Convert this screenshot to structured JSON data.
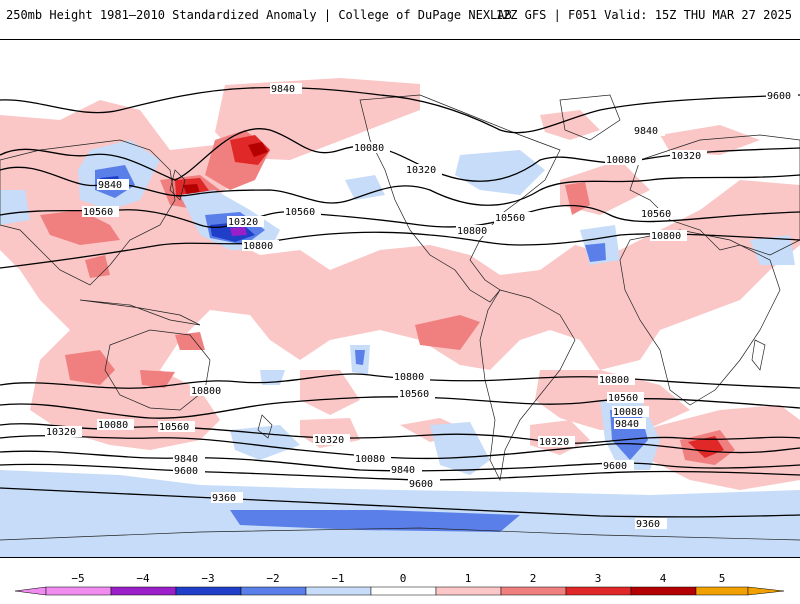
{
  "header": {
    "title": "250mb Height 1981–2010 Standardized Anomaly | College of DuPage NEXLAB",
    "run_info": "12Z GFS | F051 Valid: 15Z THU MAR 27 2025"
  },
  "colors": {
    "neg5": "#f08cf0",
    "neg4": "#9b1fc8",
    "neg3": "#1f3fc8",
    "neg2": "#5a7fe8",
    "neg1": "#c6dcf8",
    "zero": "#ffffff",
    "pos1": "#fac6c6",
    "pos2": "#f08080",
    "pos3": "#e02828",
    "pos4": "#b40000",
    "pos5": "#f0a000"
  },
  "colorbar": {
    "ticks": [
      "−5",
      "−4",
      "−3",
      "−2",
      "−1",
      "0",
      "1",
      "2",
      "3",
      "4",
      "5"
    ]
  },
  "contours": {
    "labels": [
      {
        "text": "9840"
      },
      {
        "text": "9600"
      },
      {
        "text": "9840"
      },
      {
        "text": "10080"
      },
      {
        "text": "10080"
      },
      {
        "text": "9840"
      },
      {
        "text": "10320"
      },
      {
        "text": "10320"
      },
      {
        "text": "10560"
      },
      {
        "text": "10560"
      },
      {
        "text": "10320"
      },
      {
        "text": "10560"
      },
      {
        "text": "10800"
      },
      {
        "text": "10800"
      },
      {
        "text": "10800"
      },
      {
        "text": "10560"
      },
      {
        "text": "10800"
      },
      {
        "text": "10800"
      },
      {
        "text": "10560"
      },
      {
        "text": "10560"
      },
      {
        "text": "10320"
      },
      {
        "text": "10080"
      },
      {
        "text": "10560"
      },
      {
        "text": "10320"
      },
      {
        "text": "9840"
      },
      {
        "text": "9600"
      },
      {
        "text": "10080"
      },
      {
        "text": "9840"
      },
      {
        "text": "9600"
      },
      {
        "text": "10320"
      },
      {
        "text": "10080"
      },
      {
        "text": "9840"
      },
      {
        "text": "9600"
      },
      {
        "text": "9360"
      },
      {
        "text": "9360"
      },
      {
        "text": "10800"
      }
    ]
  }
}
